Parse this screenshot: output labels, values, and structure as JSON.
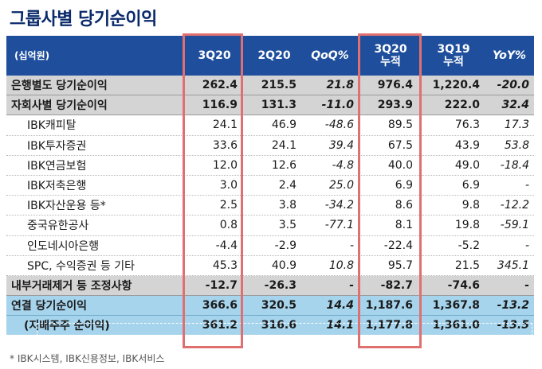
{
  "title": "그룹사별 당기순이익",
  "header": {
    "unit": "(십억원)",
    "cols": [
      "3Q20",
      "2Q20",
      "QoQ%",
      "3Q20\n누적",
      "3Q19\n누적",
      "YoY%"
    ],
    "col_lines": [
      [
        "3Q20"
      ],
      [
        "2Q20"
      ],
      [
        "QoQ%"
      ],
      [
        "3Q20",
        "누적"
      ],
      [
        "3Q19",
        "누적"
      ],
      [
        "YoY%"
      ]
    ]
  },
  "rows": [
    {
      "label": "은행별도 당기순이익",
      "values": [
        "262.4",
        "215.5",
        "21.8",
        "976.4",
        "1,220.4",
        "-20.0"
      ]
    },
    {
      "label": "자회사별 당기순이익",
      "values": [
        "116.9",
        "131.3",
        "-11.0",
        "293.9",
        "222.0",
        "32.4"
      ]
    },
    {
      "label": "IBK캐피탈",
      "values": [
        "24.1",
        "46.9",
        "-48.6",
        "89.5",
        "76.3",
        "17.3"
      ]
    },
    {
      "label": "IBK투자증권",
      "values": [
        "33.6",
        "24.1",
        "39.4",
        "67.5",
        "43.9",
        "53.8"
      ]
    },
    {
      "label": "IBK연금보험",
      "values": [
        "12.0",
        "12.6",
        "-4.8",
        "40.0",
        "49.0",
        "-18.4"
      ]
    },
    {
      "label": "IBK저축은행",
      "values": [
        "3.0",
        "2.4",
        "25.0",
        "6.9",
        "6.9",
        "-"
      ]
    },
    {
      "label": "IBK자산운용 등*",
      "values": [
        "2.5",
        "3.8",
        "-34.2",
        "8.6",
        "9.8",
        "-12.2"
      ]
    },
    {
      "label": "중국유한공사",
      "values": [
        "0.8",
        "3.5",
        "-77.1",
        "8.1",
        "19.8",
        "-59.1"
      ]
    },
    {
      "label": "인도네시아은행",
      "values": [
        "-4.4",
        "-2.9",
        "-",
        "-22.4",
        "-5.2",
        "-"
      ]
    },
    {
      "label": "SPC, 수익증권 등 기타",
      "values": [
        "45.3",
        "40.9",
        "10.8",
        "95.7",
        "21.5",
        "345.1"
      ]
    },
    {
      "label": "내부거래제거 등 조정사항",
      "values": [
        "-12.7",
        "-26.3",
        "-",
        "-82.7",
        "-74.6",
        "-"
      ]
    },
    {
      "label": "연결 당기순이익",
      "values": [
        "366.6",
        "320.5",
        "14.4",
        "1,187.6",
        "1,367.8",
        "-13.2"
      ]
    },
    {
      "label": "(지배주주 순이익)",
      "values": [
        "361.2",
        "316.6",
        "14.1",
        "1,177.8",
        "1,361.0",
        "-13.5"
      ]
    }
  ],
  "footnote": "* IBK시스템, IBK신용정보, IBK서비스",
  "colors": {
    "header_bg": "#1f4f9c",
    "highlight_border": "#e07070",
    "blue_row": "#a6d4ec",
    "gray_row": "#d4d4d4",
    "title": "#0a2a6b"
  }
}
